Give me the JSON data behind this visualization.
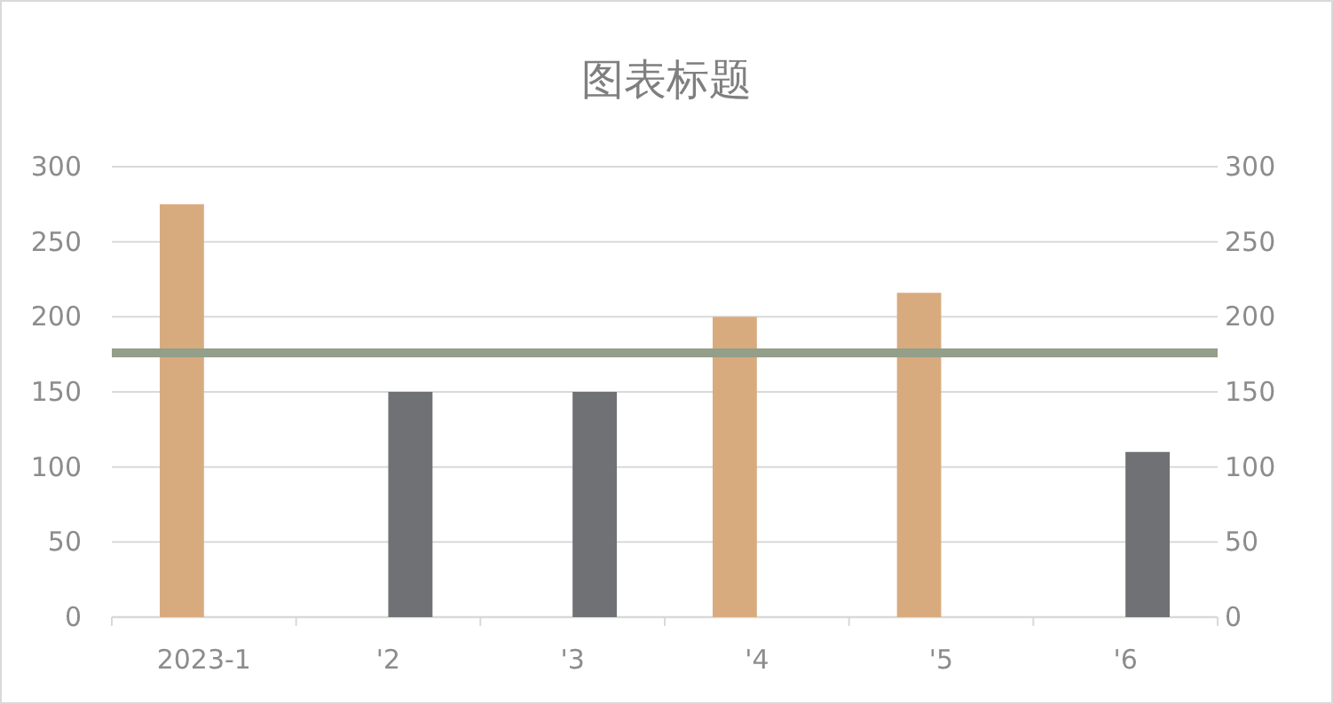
{
  "chart_data": {
    "type": "bar",
    "title": "图表标题",
    "categories": [
      "2023-1",
      "'2",
      "'3",
      "'4",
      "'5",
      "'6"
    ],
    "series": [
      {
        "color": "#d8ab7f",
        "values": [
          275,
          null,
          null,
          200,
          216,
          null
        ]
      },
      {
        "color": "#6f7175",
        "values": [
          null,
          150,
          150,
          null,
          null,
          110
        ]
      }
    ],
    "ylim": [
      0,
      300
    ],
    "yticks": [
      0,
      50,
      100,
      150,
      200,
      250,
      300
    ],
    "y2lim": [
      0,
      300
    ],
    "y2ticks": [
      0,
      50,
      100,
      150,
      200,
      250,
      300
    ],
    "ref_lines": [
      {
        "axis": "y",
        "value": 176,
        "color": "#939f88"
      }
    ],
    "grid": "y"
  }
}
